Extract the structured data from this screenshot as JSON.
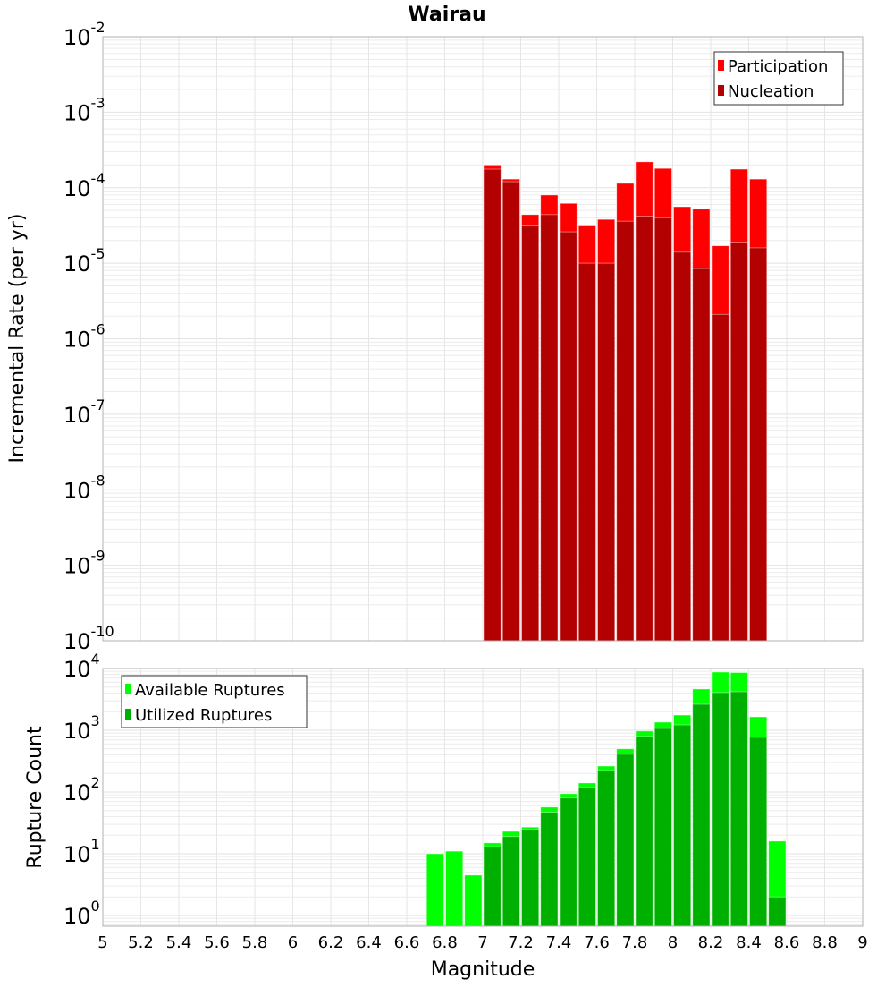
{
  "chart_data": [
    {
      "type": "bar",
      "title": "Wairau",
      "xlabel": "Magnitude",
      "ylabel": "Incremental Rate (per yr)",
      "yscale": "log",
      "xlim": [
        5,
        9
      ],
      "ylim": [
        1e-10,
        0.01
      ],
      "bin_width": 0.1,
      "grid": true,
      "legend_position": "top-right",
      "x": [
        7.0,
        7.1,
        7.2,
        7.3,
        7.4,
        7.5,
        7.6,
        7.7,
        7.8,
        7.9,
        8.0,
        8.1,
        8.2,
        8.3,
        8.4
      ],
      "series": [
        {
          "name": "Participation",
          "color": "#ff0000",
          "values": [
            0.0002,
            0.00013,
            4.4e-05,
            8e-05,
            6.2e-05,
            3.2e-05,
            3.8e-05,
            0.000114,
            0.00022,
            0.00018,
            5.6e-05,
            5.2e-05,
            1.7e-05,
            0.000176,
            0.00013
          ]
        },
        {
          "name": "Nucleation",
          "color": "#b30000",
          "values": [
            0.000176,
            0.00012,
            3.2e-05,
            4.4e-05,
            2.6e-05,
            1e-05,
            1e-05,
            3.6e-05,
            4.2e-05,
            4e-05,
            1.4e-05,
            8.5e-06,
            2.1e-06,
            1.9e-05,
            1.6e-05
          ]
        }
      ],
      "y_ticks": [
        {
          "base": "10",
          "exp": "-10"
        },
        {
          "base": "10",
          "exp": "-9"
        },
        {
          "base": "10",
          "exp": "-8"
        },
        {
          "base": "10",
          "exp": "-7"
        },
        {
          "base": "10",
          "exp": "-6"
        },
        {
          "base": "10",
          "exp": "-5"
        },
        {
          "base": "10",
          "exp": "-4"
        },
        {
          "base": "10",
          "exp": "-3"
        },
        {
          "base": "10",
          "exp": "-2"
        }
      ]
    },
    {
      "type": "bar",
      "title": "",
      "xlabel": "Magnitude",
      "ylabel": "Rupture Count",
      "yscale": "log",
      "xlim": [
        5,
        9
      ],
      "ylim": [
        0.67,
        10000
      ],
      "bin_width": 0.1,
      "grid": true,
      "legend_position": "top-left",
      "x": [
        6.7,
        6.8,
        6.9,
        7.0,
        7.1,
        7.2,
        7.3,
        7.4,
        7.5,
        7.6,
        7.7,
        7.8,
        7.9,
        8.0,
        8.1,
        8.2,
        8.3,
        8.4,
        8.5
      ],
      "series": [
        {
          "name": "Available Ruptures",
          "color": "#00ff00",
          "values": [
            10,
            11,
            4.5,
            15,
            23,
            27,
            57,
            94,
            140,
            263,
            500,
            970,
            1350,
            1760,
            4650,
            8750,
            8600,
            1650,
            16
          ]
        },
        {
          "name": "Utilized Ruptures",
          "color": "#00b000",
          "values": [
            0,
            0,
            0,
            13,
            19,
            25,
            47,
            80,
            118,
            223,
            408,
            794,
            1070,
            1220,
            2630,
            4070,
            4200,
            770,
            2
          ]
        }
      ],
      "y_ticks": [
        {
          "base": "10",
          "exp": "0"
        },
        {
          "base": "10",
          "exp": "1"
        },
        {
          "base": "10",
          "exp": "2"
        },
        {
          "base": "10",
          "exp": "3"
        },
        {
          "base": "10",
          "exp": "4"
        }
      ],
      "x_ticks": [
        "5",
        "5.2",
        "5.4",
        "5.6",
        "5.8",
        "6",
        "6.2",
        "6.4",
        "6.6",
        "6.8",
        "7",
        "7.2",
        "7.4",
        "7.6",
        "7.8",
        "8",
        "8.2",
        "8.4",
        "8.6",
        "8.8",
        "9"
      ]
    }
  ]
}
